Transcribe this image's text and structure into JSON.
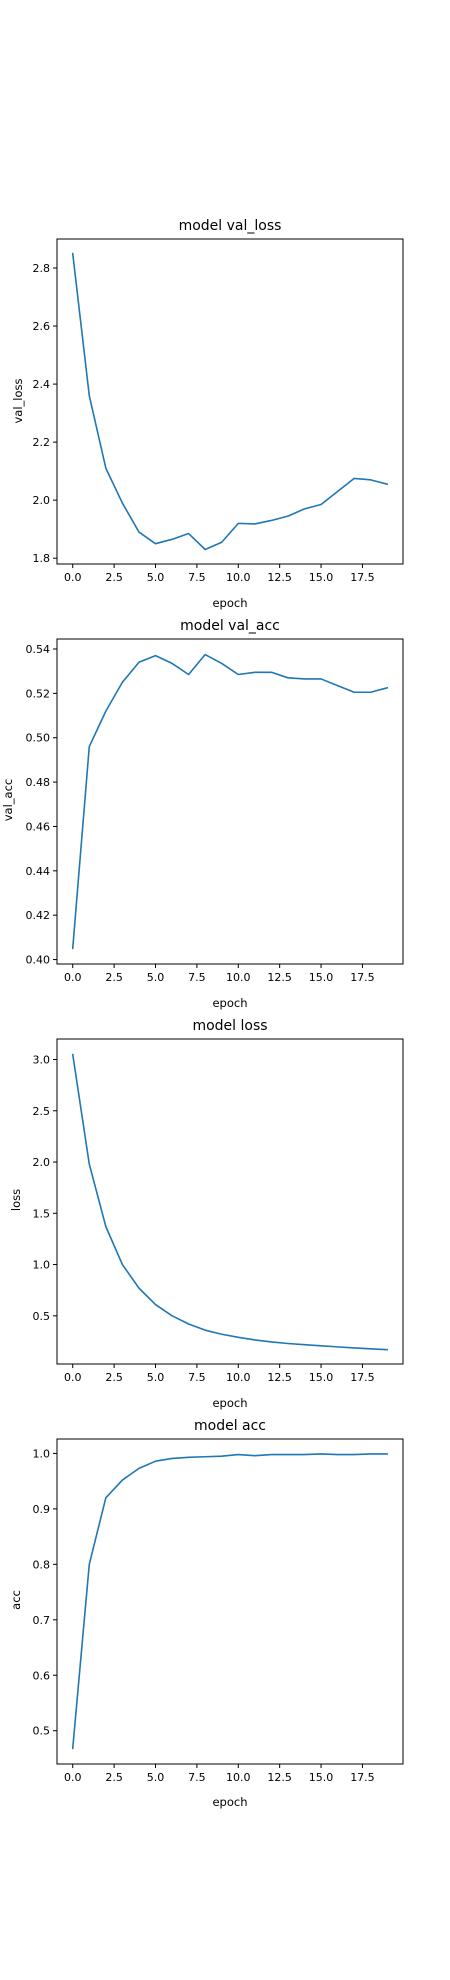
{
  "colors": {
    "line": "#1f77b4",
    "frame": "#000000",
    "background": "#ffffff"
  },
  "chart_data": [
    {
      "type": "line",
      "title": "model val_loss",
      "xlabel": "epoch",
      "ylabel": "val_loss",
      "xlim": [
        -0.95,
        19.95
      ],
      "ylim": [
        1.78,
        2.9
      ],
      "xticks": [
        0,
        2.5,
        5,
        7.5,
        10,
        12.5,
        15,
        17.5
      ],
      "xtick_labels": [
        "0.0",
        "2.5",
        "5.0",
        "7.5",
        "10.0",
        "12.5",
        "15.0",
        "17.5"
      ],
      "yticks": [
        1.8,
        2.0,
        2.2,
        2.4,
        2.6,
        2.8
      ],
      "ytick_labels": [
        "1.8",
        "2.0",
        "2.2",
        "2.4",
        "2.6",
        "2.8"
      ],
      "grid": false,
      "series": [
        {
          "x": [
            0,
            1,
            2,
            3,
            4,
            5,
            6,
            7,
            8,
            9,
            10,
            11,
            12,
            13,
            14,
            15,
            16,
            17,
            18,
            19
          ],
          "y": [
            2.85,
            2.36,
            2.11,
            1.99,
            1.89,
            1.85,
            1.865,
            1.885,
            1.83,
            1.855,
            1.92,
            1.918,
            1.93,
            1.945,
            1.97,
            1.985,
            2.03,
            2.075,
            2.07,
            2.055
          ]
        }
      ]
    },
    {
      "type": "line",
      "title": "model val_acc",
      "xlabel": "epoch",
      "ylabel": "val_acc",
      "xlim": [
        -0.95,
        19.95
      ],
      "ylim": [
        0.398,
        0.5445
      ],
      "xticks": [
        0,
        2.5,
        5,
        7.5,
        10,
        12.5,
        15,
        17.5
      ],
      "xtick_labels": [
        "0.0",
        "2.5",
        "5.0",
        "7.5",
        "10.0",
        "12.5",
        "15.0",
        "17.5"
      ],
      "yticks": [
        0.4,
        0.42,
        0.44,
        0.46,
        0.48,
        0.5,
        0.52,
        0.54
      ],
      "ytick_labels": [
        "0.40",
        "0.42",
        "0.44",
        "0.46",
        "0.48",
        "0.50",
        "0.52",
        "0.54"
      ],
      "grid": false,
      "series": [
        {
          "x": [
            0,
            1,
            2,
            3,
            4,
            5,
            6,
            7,
            8,
            9,
            10,
            11,
            12,
            13,
            14,
            15,
            16,
            17,
            18,
            19
          ],
          "y": [
            0.405,
            0.496,
            0.512,
            0.525,
            0.534,
            0.537,
            0.5335,
            0.5285,
            0.5375,
            0.5335,
            0.5285,
            0.5295,
            0.5295,
            0.527,
            0.5265,
            0.5265,
            0.5235,
            0.5205,
            0.5205,
            0.5225
          ]
        }
      ]
    },
    {
      "type": "line",
      "title": "model loss",
      "xlabel": "epoch",
      "ylabel": "loss",
      "xlim": [
        -0.95,
        19.95
      ],
      "ylim": [
        0.03,
        3.2
      ],
      "xticks": [
        0,
        2.5,
        5,
        7.5,
        10,
        12.5,
        15,
        17.5
      ],
      "xtick_labels": [
        "0.0",
        "2.5",
        "5.0",
        "7.5",
        "10.0",
        "12.5",
        "15.0",
        "17.5"
      ],
      "yticks": [
        0.5,
        1.0,
        1.5,
        2.0,
        2.5,
        3.0
      ],
      "ytick_labels": [
        "0.5",
        "1.0",
        "1.5",
        "2.0",
        "2.5",
        "3.0"
      ],
      "grid": false,
      "series": [
        {
          "x": [
            0,
            1,
            2,
            3,
            4,
            5,
            6,
            7,
            8,
            9,
            10,
            11,
            12,
            13,
            14,
            15,
            16,
            17,
            18,
            19
          ],
          "y": [
            3.05,
            1.98,
            1.37,
            1.0,
            0.77,
            0.61,
            0.5,
            0.42,
            0.36,
            0.32,
            0.29,
            0.265,
            0.245,
            0.23,
            0.218,
            0.207,
            0.197,
            0.187,
            0.178,
            0.17
          ]
        }
      ]
    },
    {
      "type": "line",
      "title": "model acc",
      "xlabel": "epoch",
      "ylabel": "acc",
      "xlim": [
        -0.95,
        19.95
      ],
      "ylim": [
        0.44,
        1.026
      ],
      "xticks": [
        0,
        2.5,
        5,
        7.5,
        10,
        12.5,
        15,
        17.5
      ],
      "xtick_labels": [
        "0.0",
        "2.5",
        "5.0",
        "7.5",
        "10.0",
        "12.5",
        "15.0",
        "17.5"
      ],
      "yticks": [
        0.5,
        0.6,
        0.7,
        0.8,
        0.9,
        1.0
      ],
      "ytick_labels": [
        "0.5",
        "0.6",
        "0.7",
        "0.8",
        "0.9",
        "1.0"
      ],
      "grid": false,
      "series": [
        {
          "x": [
            0,
            1,
            2,
            3,
            4,
            5,
            6,
            7,
            8,
            9,
            10,
            11,
            12,
            13,
            14,
            15,
            16,
            17,
            18,
            19
          ],
          "y": [
            0.468,
            0.8,
            0.92,
            0.952,
            0.973,
            0.986,
            0.991,
            0.993,
            0.994,
            0.995,
            0.998,
            0.996,
            0.998,
            0.998,
            0.998,
            0.999,
            0.998,
            0.998,
            0.999,
            0.999
          ]
        }
      ]
    }
  ]
}
